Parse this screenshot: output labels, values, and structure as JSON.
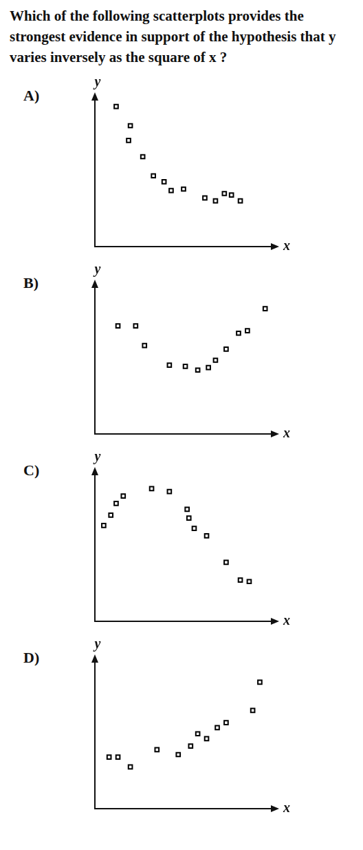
{
  "question": "Which of the following scatterplots provides the strongest evidence in support of the hypothesis that y varies inversely as the square of x ?",
  "chart_data": [
    {
      "type": "scatter",
      "title": "A)",
      "x_label": "x",
      "y_label": "y",
      "tick_labels": false,
      "grid": false,
      "marker": "square",
      "color": "#000000",
      "xlim": [
        0,
        10
      ],
      "ylim": [
        0,
        10
      ],
      "x": [
        1.2,
        2.0,
        1.9,
        2.7,
        3.3,
        3.9,
        4.3,
        5.0,
        6.2,
        6.8,
        7.3,
        7.7,
        8.2
      ],
      "values": [
        9.5,
        8.2,
        7.2,
        6.1,
        4.8,
        4.4,
        3.8,
        3.9,
        3.3,
        3.1,
        3.6,
        3.5,
        3.1
      ]
    },
    {
      "type": "scatter",
      "title": "B)",
      "x_label": "x",
      "y_label": "y",
      "tick_labels": false,
      "grid": false,
      "marker": "square",
      "color": "#000000",
      "xlim": [
        0,
        10
      ],
      "ylim": [
        0,
        12
      ],
      "x": [
        1.3,
        2.3,
        2.8,
        4.2,
        5.1,
        5.8,
        6.4,
        6.8,
        7.4,
        8.1,
        8.6,
        9.6
      ],
      "values": [
        8.8,
        8.8,
        7.2,
        5.6,
        5.5,
        5.2,
        5.4,
        6.0,
        6.9,
        8.2,
        8.4,
        10.2
      ]
    },
    {
      "type": "scatter",
      "title": "C)",
      "x_label": "x",
      "y_label": "y",
      "tick_labels": false,
      "grid": false,
      "marker": "square",
      "color": "#000000",
      "xlim": [
        0,
        10
      ],
      "ylim": [
        0,
        10
      ],
      "x": [
        0.5,
        0.9,
        1.2,
        1.6,
        3.2,
        4.2,
        5.2,
        5.3,
        5.6,
        6.3,
        7.4,
        8.2,
        8.7
      ],
      "values": [
        6.5,
        7.2,
        8.0,
        8.5,
        9.0,
        8.8,
        7.6,
        7.0,
        6.3,
        5.8,
        4.0,
        2.8,
        2.7
      ]
    },
    {
      "type": "scatter",
      "title": "D)",
      "x_label": "x",
      "y_label": "y",
      "tick_labels": false,
      "grid": false,
      "marker": "square",
      "color": "#000000",
      "xlim": [
        0,
        10
      ],
      "ylim": [
        0,
        12
      ],
      "x": [
        0.8,
        1.3,
        2.0,
        3.5,
        4.7,
        5.4,
        5.8,
        6.3,
        6.9,
        7.4,
        8.9,
        9.3
      ],
      "values": [
        4.2,
        4.2,
        3.4,
        4.8,
        4.4,
        5.1,
        6.1,
        5.7,
        6.6,
        7.0,
        8.0,
        10.3
      ]
    }
  ]
}
